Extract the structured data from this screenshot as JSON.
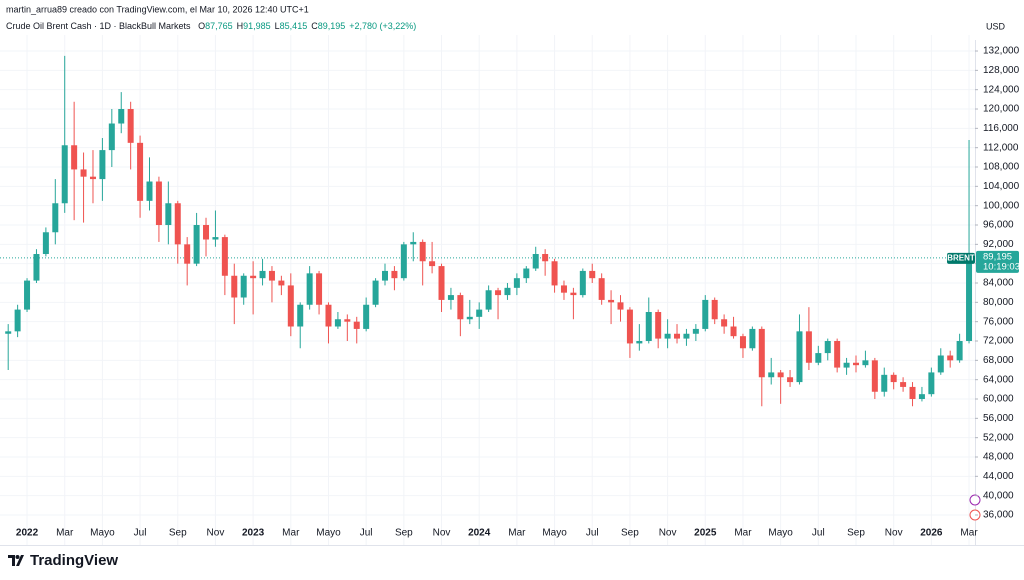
{
  "header": {
    "watermark": "martin_arrua89 creado con TradingView.com, el Mar 10, 2026 12:40 UTC+1"
  },
  "chart_data": {
    "type": "candlestick",
    "title": "Crude Oil Brent Cash · 1D · BlackBull Markets",
    "ohlc_legend": [
      {
        "key": "O",
        "value": "87,765"
      },
      {
        "key": "H",
        "value": "91,985"
      },
      {
        "key": "L",
        "value": "85,415"
      },
      {
        "key": "C",
        "value": "89,195"
      }
    ],
    "change": "+2,780 (+3,22%)",
    "currency": "USD",
    "symbol_tag": "BRENT",
    "last_price": {
      "value": 89195,
      "label": "89,195"
    },
    "countdown": "10:19:03",
    "up_color": "#26a69a",
    "down_color": "#ef5350",
    "grid": true,
    "categories": [
      null,
      null,
      "2022",
      null,
      null,
      null,
      "Mar",
      null,
      null,
      null,
      "Mayo",
      null,
      null,
      null,
      "Jul",
      null,
      null,
      null,
      "Sep",
      null,
      null,
      null,
      "Nov",
      null,
      null,
      null,
      "2023",
      null,
      null,
      null,
      "Mar",
      null,
      null,
      null,
      "Mayo",
      null,
      null,
      null,
      "Jul",
      null,
      null,
      null,
      "Sep",
      null,
      null,
      null,
      "Nov",
      null,
      null,
      null,
      "2024",
      null,
      null,
      null,
      "Mar",
      null,
      null,
      null,
      "Mayo",
      null,
      null,
      null,
      "Jul",
      null,
      null,
      null,
      "Sep",
      null,
      null,
      null,
      "Nov",
      null,
      null,
      null,
      "2025",
      null,
      null,
      null,
      "Mar",
      null,
      null,
      null,
      "Mayo",
      null,
      null,
      null,
      "Jul",
      null,
      null,
      null,
      "Sep",
      null,
      null,
      null,
      "Nov",
      null,
      null,
      null,
      "2026",
      null,
      null,
      null,
      "Mar"
    ],
    "open": [
      73500,
      74000,
      78500,
      84500,
      90000,
      94500,
      100500,
      112500,
      107500,
      106000,
      105500,
      111500,
      117000,
      120000,
      113000,
      101000,
      105000,
      96000,
      100500,
      92000,
      88000,
      96000,
      93000,
      93500,
      85500,
      81000,
      85500,
      85000,
      86500,
      84500,
      83500,
      75000,
      79500,
      86000,
      79500,
      75000,
      76500,
      76000,
      74500,
      79500,
      84500,
      86500,
      85000,
      92000,
      92500,
      88500,
      87500,
      80500,
      81500,
      76500,
      77000,
      78500,
      82500,
      81500,
      83000,
      85000,
      87000,
      90000,
      88500,
      83500,
      82000,
      81500,
      86500,
      85000,
      80500,
      80000,
      78500,
      71500,
      72000,
      78000,
      72500,
      73500,
      72500,
      73500,
      74500,
      80500,
      76500,
      75000,
      73000,
      70500,
      74500,
      64500,
      65500,
      64500,
      63500,
      74000,
      67500,
      69500,
      72000,
      66500,
      67500,
      67000,
      68000,
      61500,
      65000,
      63500,
      62500,
      60000,
      61000,
      65500,
      69000,
      68000,
      72000
    ],
    "high": [
      75500,
      79500,
      85000,
      91000,
      95500,
      105500,
      131000,
      121500,
      111000,
      111500,
      114000,
      120000,
      123500,
      121500,
      114500,
      110000,
      106000,
      105000,
      101000,
      93500,
      98500,
      97500,
      99000,
      94000,
      88000,
      86000,
      88500,
      89000,
      87500,
      85500,
      86000,
      80000,
      87500,
      86500,
      80000,
      78000,
      77500,
      77000,
      81000,
      85000,
      88000,
      87500,
      92500,
      94500,
      93000,
      92500,
      88000,
      83000,
      82000,
      80500,
      80000,
      83500,
      83000,
      84000,
      86000,
      87500,
      91500,
      91000,
      89000,
      84500,
      83000,
      87000,
      88000,
      86000,
      82500,
      81500,
      79000,
      75500,
      81000,
      78500,
      76500,
      75500,
      74500,
      75500,
      81500,
      81000,
      77500,
      77000,
      73500,
      75000,
      75000,
      68500,
      66000,
      66000,
      77500,
      79000,
      71000,
      72500,
      72500,
      68500,
      69000,
      70000,
      68500,
      66500,
      65500,
      64500,
      63500,
      62500,
      66500,
      70500,
      70000,
      73500,
      113600
    ],
    "low": [
      66000,
      72800,
      78000,
      84000,
      89500,
      92000,
      98500,
      97000,
      96500,
      100500,
      101000,
      108000,
      115000,
      107500,
      97500,
      99000,
      92500,
      92000,
      88000,
      83500,
      87500,
      89500,
      91500,
      81500,
      75500,
      79500,
      77500,
      83500,
      80000,
      81500,
      73000,
      70500,
      78500,
      77500,
      71500,
      74500,
      72000,
      71500,
      74000,
      79000,
      83500,
      82500,
      84500,
      88500,
      83500,
      86000,
      78000,
      78500,
      73000,
      75500,
      74500,
      78000,
      76500,
      80500,
      81500,
      84000,
      86500,
      85500,
      82000,
      80500,
      76500,
      81000,
      84000,
      79500,
      75500,
      76000,
      68500,
      70000,
      71500,
      70500,
      70500,
      71500,
      71000,
      72000,
      74000,
      75500,
      73500,
      72500,
      68500,
      70000,
      58500,
      63000,
      59000,
      62500,
      63000,
      66000,
      67000,
      68000,
      65500,
      65000,
      65500,
      66500,
      60000,
      60500,
      62000,
      61500,
      58500,
      59500,
      60500,
      65000,
      66500,
      67500,
      71500
    ],
    "close": [
      74000,
      78500,
      84500,
      90000,
      94500,
      100500,
      112500,
      107500,
      106000,
      105500,
      111500,
      117000,
      120000,
      113000,
      101000,
      105000,
      96000,
      100500,
      92000,
      88000,
      96000,
      93000,
      93500,
      85500,
      81000,
      85500,
      85000,
      86500,
      84500,
      83500,
      75000,
      79500,
      86000,
      79500,
      75000,
      76500,
      76000,
      74500,
      79500,
      84500,
      86500,
      85000,
      92000,
      92500,
      88500,
      87500,
      80500,
      81500,
      76500,
      77000,
      78500,
      82500,
      81500,
      83000,
      85000,
      87000,
      90000,
      88500,
      83500,
      82000,
      81500,
      86500,
      85000,
      80500,
      80000,
      78500,
      71500,
      72000,
      78000,
      72500,
      73500,
      72500,
      73500,
      74500,
      80500,
      76500,
      75000,
      73000,
      70500,
      74500,
      64500,
      65500,
      64500,
      63500,
      74000,
      67500,
      69500,
      72000,
      66500,
      67500,
      67000,
      68000,
      61500,
      65000,
      63500,
      62500,
      60000,
      61000,
      65500,
      69000,
      68000,
      72000,
      89195
    ],
    "ylim": [
      33930,
      134280
    ],
    "yticks": [
      {
        "value": 36000,
        "label": "36,000"
      },
      {
        "value": 40000,
        "label": "40,000"
      },
      {
        "value": 44000,
        "label": "44,000"
      },
      {
        "value": 48000,
        "label": "48,000"
      },
      {
        "value": 52000,
        "label": "52,000"
      },
      {
        "value": 56000,
        "label": "56,000"
      },
      {
        "value": 60000,
        "label": "60,000"
      },
      {
        "value": 64000,
        "label": "64,000"
      },
      {
        "value": 68000,
        "label": "68,000"
      },
      {
        "value": 72000,
        "label": "72,000"
      },
      {
        "value": 76000,
        "label": "76,000"
      },
      {
        "value": 80000,
        "label": "80,000"
      },
      {
        "value": 84000,
        "label": "84,000"
      },
      {
        "value": 88000,
        "label": "88,000"
      },
      {
        "value": 92000,
        "label": "92,000"
      },
      {
        "value": 96000,
        "label": "96,000"
      },
      {
        "value": 100000,
        "label": "100,000"
      },
      {
        "value": 104000,
        "label": "104,000"
      },
      {
        "value": 108000,
        "label": "108,000"
      },
      {
        "value": 112000,
        "label": "112,000"
      },
      {
        "value": 116000,
        "label": "116,000"
      },
      {
        "value": 120000,
        "label": "120,000"
      },
      {
        "value": 124000,
        "label": "124,000"
      },
      {
        "value": 128000,
        "label": "128,000"
      },
      {
        "value": 132000,
        "label": "132,000"
      }
    ]
  },
  "footer": {
    "brand": "TradingView"
  }
}
